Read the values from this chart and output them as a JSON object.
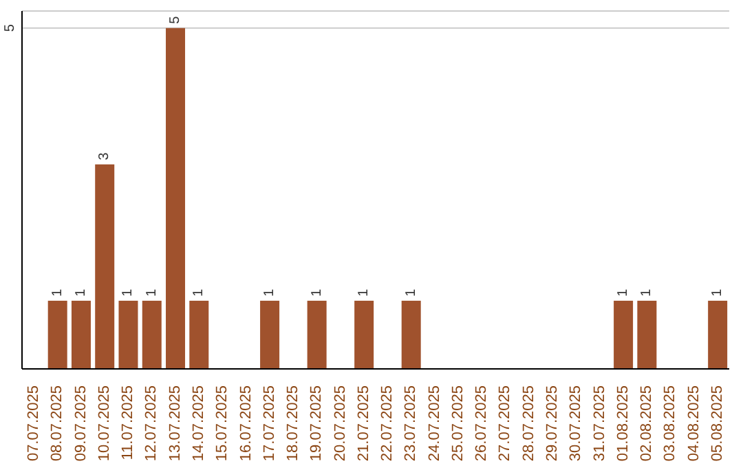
{
  "chart_data": {
    "type": "bar",
    "categories": [
      "07.07.2025",
      "08.07.2025",
      "09.07.2025",
      "10.07.2025",
      "11.07.2025",
      "12.07.2025",
      "13.07.2025",
      "14.07.2025",
      "15.07.2025",
      "16.07.2025",
      "17.07.2025",
      "18.07.2025",
      "19.07.2025",
      "20.07.2025",
      "21.07.2025",
      "22.07.2025",
      "23.07.2025",
      "24.07.2025",
      "25.07.2025",
      "26.07.2025",
      "27.07.2025",
      "28.07.2025",
      "29.07.2025",
      "30.07.2025",
      "31.07.2025",
      "01.08.2025",
      "02.08.2025",
      "03.08.2025",
      "04.08.2025",
      "05.08.2025"
    ],
    "values": [
      0,
      1,
      1,
      3,
      1,
      1,
      5,
      1,
      0,
      0,
      1,
      0,
      1,
      0,
      1,
      0,
      1,
      0,
      0,
      0,
      0,
      0,
      0,
      0,
      0,
      1,
      1,
      0,
      0,
      1
    ],
    "value_labels": [
      null,
      "1",
      "1",
      "3",
      "1",
      "1",
      "5",
      "1",
      null,
      null,
      "1",
      null,
      "1",
      null,
      "1",
      null,
      "1",
      null,
      null,
      null,
      null,
      null,
      null,
      null,
      null,
      "1",
      "1",
      null,
      null,
      "1"
    ],
    "color": "#a0522d",
    "ylim": [
      0,
      5.25
    ],
    "yticks": [
      {
        "value": 0,
        "label": null
      },
      5
    ],
    "grid": "y"
  }
}
